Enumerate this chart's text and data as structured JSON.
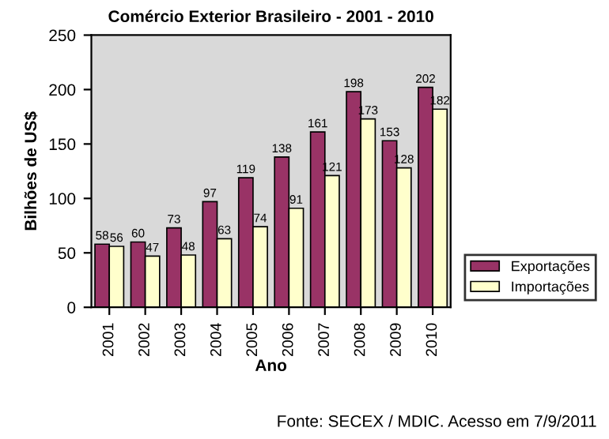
{
  "chart_data": {
    "type": "bar",
    "title": "Comércio Exterior Brasileiro - 2001 - 2010",
    "xlabel": "Ano",
    "ylabel": "Bilhões de US$",
    "categories": [
      "2001",
      "2002",
      "2003",
      "2004",
      "2005",
      "2006",
      "2007",
      "2008",
      "2009",
      "2010"
    ],
    "series": [
      {
        "name": "Exportações",
        "color": "#993366",
        "values": [
          58,
          60,
          73,
          97,
          119,
          138,
          161,
          198,
          153,
          202
        ]
      },
      {
        "name": "Importações",
        "color": "#ffffcc",
        "values": [
          56,
          47,
          48,
          63,
          74,
          91,
          121,
          173,
          128,
          182
        ]
      }
    ],
    "ylim": [
      0,
      250
    ],
    "yticks": [
      0,
      50,
      100,
      150,
      200,
      250
    ],
    "data_labels": true,
    "legend": "bottom right",
    "grid": false,
    "annotations": [
      "Fonte: SECEX / MDIC. Acesso em 7/9/2011"
    ]
  }
}
